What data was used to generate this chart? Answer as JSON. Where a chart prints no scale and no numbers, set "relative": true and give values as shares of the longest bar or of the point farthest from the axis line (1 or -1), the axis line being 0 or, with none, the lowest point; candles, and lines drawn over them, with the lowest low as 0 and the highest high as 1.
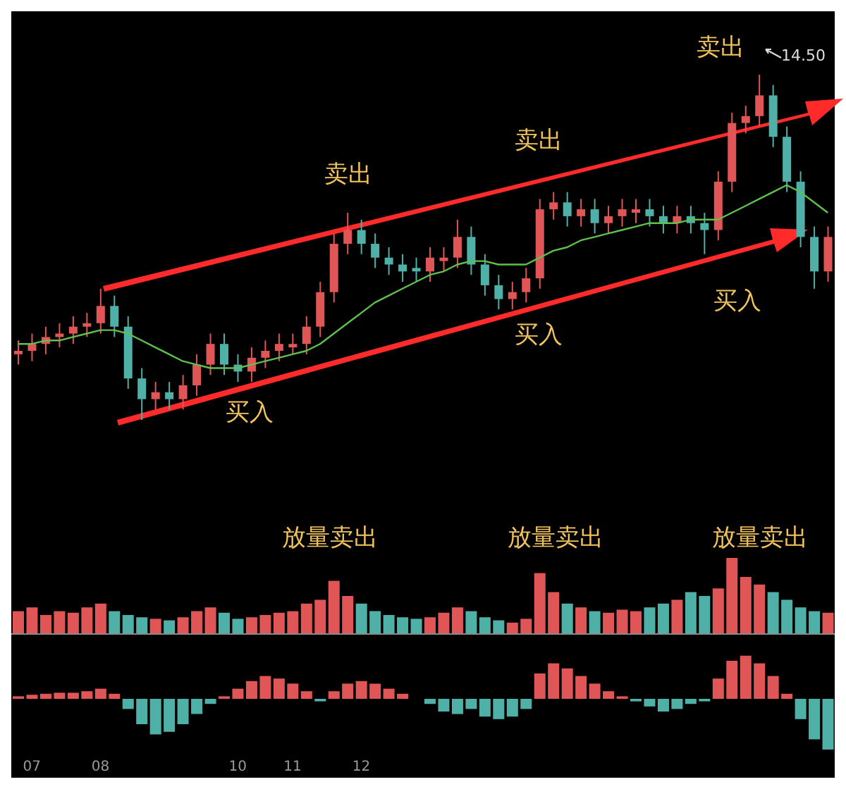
{
  "chart_data": [
    {
      "type": "candlestick",
      "relative": true,
      "tick_labels": false,
      "categories": [
        null,
        null,
        null,
        null,
        null,
        null,
        null,
        null,
        null,
        null,
        null,
        null,
        null,
        null,
        null,
        null,
        null,
        null,
        null,
        null,
        null,
        null,
        null,
        null,
        null,
        null,
        null,
        null,
        null,
        null,
        null,
        null,
        null,
        null,
        null,
        null,
        null,
        null,
        null,
        null,
        null,
        null,
        null,
        null,
        null,
        null,
        null,
        null,
        null,
        null,
        null,
        null,
        null,
        null,
        null,
        null,
        null,
        null,
        null,
        null
      ],
      "ohlc": [
        [
          0.19,
          0.23,
          0.16,
          0.2
        ],
        [
          0.2,
          0.25,
          0.17,
          0.22
        ],
        [
          0.22,
          0.27,
          0.19,
          0.24
        ],
        [
          0.24,
          0.28,
          0.21,
          0.25
        ],
        [
          0.25,
          0.3,
          0.22,
          0.27
        ],
        [
          0.27,
          0.31,
          0.24,
          0.28
        ],
        [
          0.28,
          0.38,
          0.25,
          0.33
        ],
        [
          0.33,
          0.36,
          0.24,
          0.27
        ],
        [
          0.27,
          0.3,
          0.09,
          0.12
        ],
        [
          0.12,
          0.15,
          0.0,
          0.06
        ],
        [
          0.06,
          0.11,
          0.03,
          0.08
        ],
        [
          0.08,
          0.11,
          0.03,
          0.06
        ],
        [
          0.06,
          0.13,
          0.03,
          0.1
        ],
        [
          0.1,
          0.19,
          0.07,
          0.16
        ],
        [
          0.16,
          0.25,
          0.13,
          0.22
        ],
        [
          0.22,
          0.25,
          0.13,
          0.16
        ],
        [
          0.16,
          0.19,
          0.11,
          0.14
        ],
        [
          0.14,
          0.21,
          0.11,
          0.18
        ],
        [
          0.18,
          0.23,
          0.15,
          0.2
        ],
        [
          0.2,
          0.25,
          0.17,
          0.22
        ],
        [
          0.21,
          0.25,
          0.19,
          0.22
        ],
        [
          0.22,
          0.3,
          0.19,
          0.27
        ],
        [
          0.27,
          0.4,
          0.24,
          0.37
        ],
        [
          0.37,
          0.54,
          0.34,
          0.51
        ],
        [
          0.51,
          0.6,
          0.48,
          0.55
        ],
        [
          0.55,
          0.58,
          0.48,
          0.51
        ],
        [
          0.51,
          0.54,
          0.44,
          0.47
        ],
        [
          0.47,
          0.5,
          0.42,
          0.45
        ],
        [
          0.45,
          0.48,
          0.4,
          0.43
        ],
        [
          0.44,
          0.47,
          0.4,
          0.43
        ],
        [
          0.43,
          0.5,
          0.4,
          0.47
        ],
        [
          0.46,
          0.5,
          0.43,
          0.47
        ],
        [
          0.47,
          0.58,
          0.44,
          0.53
        ],
        [
          0.53,
          0.56,
          0.42,
          0.45
        ],
        [
          0.45,
          0.48,
          0.36,
          0.39
        ],
        [
          0.39,
          0.42,
          0.32,
          0.35
        ],
        [
          0.35,
          0.4,
          0.32,
          0.37
        ],
        [
          0.37,
          0.44,
          0.34,
          0.41
        ],
        [
          0.41,
          0.64,
          0.38,
          0.61
        ],
        [
          0.61,
          0.66,
          0.58,
          0.63
        ],
        [
          0.63,
          0.66,
          0.56,
          0.59
        ],
        [
          0.59,
          0.64,
          0.56,
          0.61
        ],
        [
          0.61,
          0.64,
          0.54,
          0.57
        ],
        [
          0.57,
          0.62,
          0.54,
          0.59
        ],
        [
          0.59,
          0.64,
          0.56,
          0.61
        ],
        [
          0.6,
          0.64,
          0.57,
          0.61
        ],
        [
          0.61,
          0.64,
          0.56,
          0.59
        ],
        [
          0.59,
          0.62,
          0.54,
          0.57
        ],
        [
          0.57,
          0.62,
          0.54,
          0.59
        ],
        [
          0.59,
          0.62,
          0.54,
          0.57
        ],
        [
          0.57,
          0.6,
          0.48,
          0.55
        ],
        [
          0.55,
          0.72,
          0.52,
          0.69
        ],
        [
          0.69,
          0.89,
          0.66,
          0.86
        ],
        [
          0.86,
          0.91,
          0.83,
          0.88
        ],
        [
          0.88,
          1.0,
          0.85,
          0.94
        ],
        [
          0.94,
          0.97,
          0.79,
          0.82
        ],
        [
          0.82,
          0.85,
          0.66,
          0.69
        ],
        [
          0.69,
          0.72,
          0.5,
          0.53
        ],
        [
          0.53,
          0.56,
          0.38,
          0.43
        ],
        [
          0.43,
          0.56,
          0.4,
          0.53
        ]
      ],
      "colors": [
        "#e05555",
        "#e05555",
        "#e05555",
        "#e05555",
        "#e05555",
        "#e05555",
        "#e05555",
        "#4fb0a8",
        "#4fb0a8",
        "#4fb0a8",
        "#e05555",
        "#4fb0a8",
        "#e05555",
        "#e05555",
        "#e05555",
        "#4fb0a8",
        "#4fb0a8",
        "#e05555",
        "#e05555",
        "#e05555",
        "#e05555",
        "#e05555",
        "#e05555",
        "#e05555",
        "#e05555",
        "#4fb0a8",
        "#4fb0a8",
        "#4fb0a8",
        "#4fb0a8",
        "#4fb0a8",
        "#e05555",
        "#e05555",
        "#e05555",
        "#4fb0a8",
        "#4fb0a8",
        "#4fb0a8",
        "#e05555",
        "#e05555",
        "#e05555",
        "#e05555",
        "#4fb0a8",
        "#e05555",
        "#4fb0a8",
        "#e05555",
        "#e05555",
        "#e05555",
        "#4fb0a8",
        "#4fb0a8",
        "#e05555",
        "#4fb0a8",
        "#4fb0a8",
        "#e05555",
        "#e05555",
        "#e05555",
        "#e05555",
        "#4fb0a8",
        "#4fb0a8",
        "#4fb0a8",
        "#4fb0a8",
        "#e05555"
      ],
      "series": [
        {
          "type": "line",
          "color": "#5fbf4f",
          "values": [
            0.22,
            0.22,
            0.23,
            0.23,
            0.24,
            0.25,
            0.26,
            0.26,
            0.25,
            0.23,
            0.21,
            0.19,
            0.17,
            0.16,
            0.15,
            0.15,
            0.15,
            0.16,
            0.17,
            0.18,
            0.19,
            0.2,
            0.22,
            0.25,
            0.28,
            0.31,
            0.34,
            0.36,
            0.38,
            0.4,
            0.42,
            0.43,
            0.45,
            0.46,
            0.46,
            0.45,
            0.45,
            0.45,
            0.47,
            0.49,
            0.5,
            0.52,
            0.53,
            0.54,
            0.55,
            0.56,
            0.57,
            0.57,
            0.57,
            0.58,
            0.58,
            0.58,
            0.6,
            0.62,
            0.64,
            0.66,
            0.68,
            0.66,
            0.63,
            0.6
          ]
        }
      ],
      "annotations": [
        "卖出",
        "卖出",
        "卖出",
        "14.50",
        "买入",
        "买入",
        "买入"
      ]
    },
    {
      "type": "bar",
      "relative": true,
      "tick_labels": false,
      "categories": [
        null,
        null,
        null,
        null,
        null,
        null,
        null,
        null,
        null,
        null,
        null,
        null,
        null,
        null,
        null,
        null,
        null,
        null,
        null,
        null,
        null,
        null,
        null,
        null,
        null,
        null,
        null,
        null,
        null,
        null,
        null,
        null,
        null,
        null,
        null,
        null,
        null,
        null,
        null,
        null,
        null,
        null,
        null,
        null,
        null,
        null,
        null,
        null,
        null,
        null,
        null,
        null,
        null,
        null,
        null,
        null,
        null,
        null,
        null,
        null
      ],
      "values": [
        0.3,
        0.35,
        0.25,
        0.3,
        0.28,
        0.35,
        0.4,
        0.3,
        0.25,
        0.22,
        0.2,
        0.18,
        0.22,
        0.3,
        0.35,
        0.28,
        0.2,
        0.22,
        0.25,
        0.28,
        0.3,
        0.4,
        0.45,
        0.7,
        0.5,
        0.4,
        0.3,
        0.25,
        0.22,
        0.2,
        0.22,
        0.28,
        0.35,
        0.3,
        0.22,
        0.18,
        0.15,
        0.2,
        0.8,
        0.55,
        0.4,
        0.35,
        0.3,
        0.28,
        0.32,
        0.3,
        0.35,
        0.4,
        0.45,
        0.55,
        0.5,
        0.6,
        1.0,
        0.75,
        0.65,
        0.55,
        0.45,
        0.35,
        0.3,
        0.28
      ],
      "colors": [
        "#e05555",
        "#e05555",
        "#e05555",
        "#e05555",
        "#e05555",
        "#e05555",
        "#e05555",
        "#4fb0a8",
        "#4fb0a8",
        "#4fb0a8",
        "#e05555",
        "#4fb0a8",
        "#e05555",
        "#e05555",
        "#e05555",
        "#4fb0a8",
        "#4fb0a8",
        "#e05555",
        "#e05555",
        "#e05555",
        "#e05555",
        "#e05555",
        "#e05555",
        "#e05555",
        "#e05555",
        "#4fb0a8",
        "#4fb0a8",
        "#4fb0a8",
        "#4fb0a8",
        "#4fb0a8",
        "#e05555",
        "#e05555",
        "#e05555",
        "#4fb0a8",
        "#4fb0a8",
        "#4fb0a8",
        "#e05555",
        "#e05555",
        "#e05555",
        "#e05555",
        "#4fb0a8",
        "#e05555",
        "#4fb0a8",
        "#e05555",
        "#e05555",
        "#e05555",
        "#4fb0a8",
        "#4fb0a8",
        "#e05555",
        "#4fb0a8",
        "#4fb0a8",
        "#e05555",
        "#e05555",
        "#e05555",
        "#e05555",
        "#4fb0a8",
        "#4fb0a8",
        "#4fb0a8",
        "#4fb0a8",
        "#e05555"
      ],
      "annotations": [
        "放量卖出",
        "放量卖出",
        "放量卖出"
      ]
    },
    {
      "type": "bar",
      "relative": true,
      "tick_labels": "x",
      "categories": [
        null,
        "07",
        null,
        null,
        null,
        null,
        "08",
        null,
        null,
        null,
        null,
        null,
        null,
        null,
        null,
        null,
        "10",
        null,
        null,
        null,
        "11",
        null,
        null,
        null,
        null,
        "12",
        null,
        null,
        null,
        null,
        null,
        null,
        null,
        null,
        null,
        null,
        null,
        null,
        null,
        null,
        null,
        null,
        null,
        null,
        null,
        null,
        null,
        null,
        null,
        null,
        null,
        null,
        null,
        null,
        null,
        null,
        null,
        null,
        null,
        null
      ],
      "values": [
        0.05,
        0.08,
        0.1,
        0.12,
        0.12,
        0.15,
        0.2,
        0.1,
        -0.2,
        -0.5,
        -0.7,
        -0.65,
        -0.5,
        -0.3,
        -0.1,
        0.05,
        0.2,
        0.35,
        0.45,
        0.4,
        0.3,
        0.15,
        -0.05,
        0.15,
        0.3,
        0.35,
        0.3,
        0.2,
        0.1,
        0.0,
        -0.1,
        -0.25,
        -0.3,
        -0.2,
        -0.35,
        -0.4,
        -0.35,
        -0.2,
        0.5,
        0.7,
        0.6,
        0.45,
        0.3,
        0.15,
        0.05,
        -0.05,
        -0.15,
        -0.25,
        -0.2,
        -0.1,
        -0.05,
        0.4,
        0.75,
        0.85,
        0.7,
        0.45,
        0.1,
        -0.4,
        -0.8,
        -1.0
      ],
      "colors": [
        "#e05555",
        "#e05555",
        "#e05555",
        "#e05555",
        "#e05555",
        "#e05555",
        "#e05555",
        "#e05555",
        "#4fb0a8",
        "#4fb0a8",
        "#4fb0a8",
        "#4fb0a8",
        "#4fb0a8",
        "#4fb0a8",
        "#4fb0a8",
        "#e05555",
        "#e05555",
        "#e05555",
        "#e05555",
        "#e05555",
        "#e05555",
        "#e05555",
        "#4fb0a8",
        "#e05555",
        "#e05555",
        "#e05555",
        "#e05555",
        "#e05555",
        "#e05555",
        "#e05555",
        "#4fb0a8",
        "#4fb0a8",
        "#4fb0a8",
        "#4fb0a8",
        "#4fb0a8",
        "#4fb0a8",
        "#4fb0a8",
        "#4fb0a8",
        "#e05555",
        "#e05555",
        "#e05555",
        "#e05555",
        "#e05555",
        "#e05555",
        "#e05555",
        "#4fb0a8",
        "#4fb0a8",
        "#4fb0a8",
        "#4fb0a8",
        "#4fb0a8",
        "#4fb0a8",
        "#e05555",
        "#e05555",
        "#e05555",
        "#e05555",
        "#e05555",
        "#e05555",
        "#4fb0a8",
        "#4fb0a8",
        "#4fb0a8"
      ]
    }
  ]
}
